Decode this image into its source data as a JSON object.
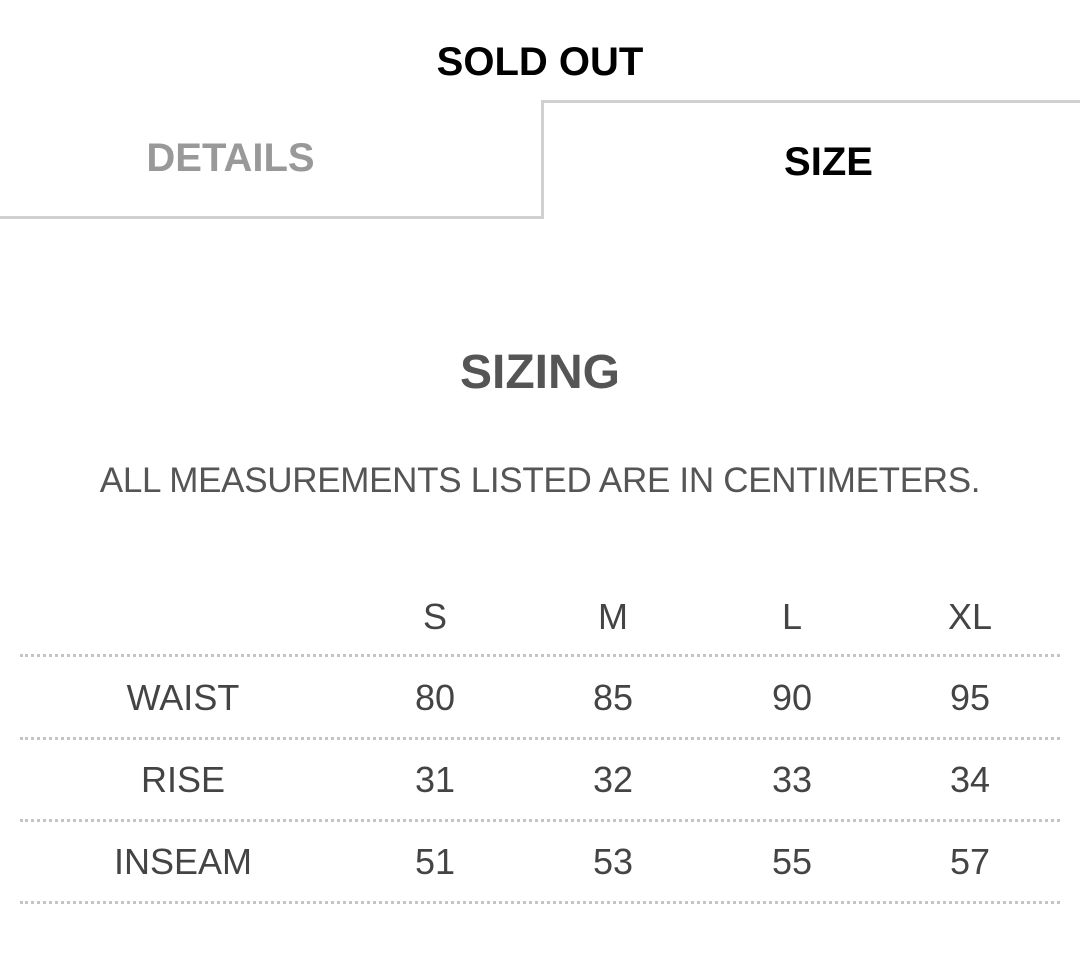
{
  "status": "SOLD OUT",
  "tabs": [
    {
      "label": "DETAILS",
      "active": false
    },
    {
      "label": "SIZE",
      "active": true
    }
  ],
  "section_title": "SIZING",
  "note": "ALL MEASUREMENTS LISTED ARE IN CENTIMETERS.",
  "table": {
    "columns": [
      "S",
      "M",
      "L",
      "XL"
    ],
    "rows": [
      {
        "label": "WAIST",
        "values": [
          "80",
          "85",
          "90",
          "95"
        ]
      },
      {
        "label": "RISE",
        "values": [
          "31",
          "32",
          "33",
          "34"
        ]
      },
      {
        "label": "INSEAM",
        "values": [
          "51",
          "53",
          "55",
          "57"
        ]
      }
    ]
  }
}
